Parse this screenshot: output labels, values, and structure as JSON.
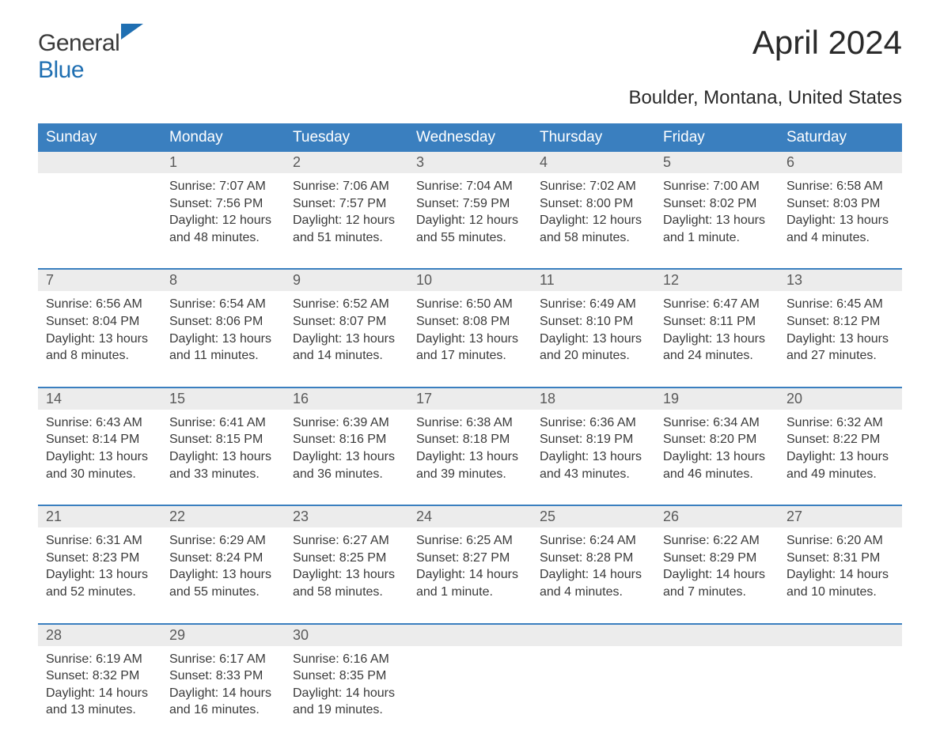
{
  "brand": {
    "part1": "General",
    "part2": "Blue"
  },
  "title": "April 2024",
  "subtitle": "Boulder, Montana, United States",
  "colors": {
    "header_bg": "#3a7fbf",
    "header_text": "#ffffff",
    "num_row_bg": "#ececec",
    "week_border": "#3a7fbf",
    "body_text": "#3a3a3a",
    "page_bg": "#ffffff",
    "logo_blue": "#1f6fb2"
  },
  "day_names": [
    "Sunday",
    "Monday",
    "Tuesday",
    "Wednesday",
    "Thursday",
    "Friday",
    "Saturday"
  ],
  "label": {
    "sunrise": "Sunrise:",
    "sunset": "Sunset:",
    "daylight": "Daylight:"
  },
  "weeks": [
    [
      null,
      {
        "n": "1",
        "sunrise": "7:07 AM",
        "sunset": "7:56 PM",
        "daylight": "12 hours and 48 minutes."
      },
      {
        "n": "2",
        "sunrise": "7:06 AM",
        "sunset": "7:57 PM",
        "daylight": "12 hours and 51 minutes."
      },
      {
        "n": "3",
        "sunrise": "7:04 AM",
        "sunset": "7:59 PM",
        "daylight": "12 hours and 55 minutes."
      },
      {
        "n": "4",
        "sunrise": "7:02 AM",
        "sunset": "8:00 PM",
        "daylight": "12 hours and 58 minutes."
      },
      {
        "n": "5",
        "sunrise": "7:00 AM",
        "sunset": "8:02 PM",
        "daylight": "13 hours and 1 minute."
      },
      {
        "n": "6",
        "sunrise": "6:58 AM",
        "sunset": "8:03 PM",
        "daylight": "13 hours and 4 minutes."
      }
    ],
    [
      {
        "n": "7",
        "sunrise": "6:56 AM",
        "sunset": "8:04 PM",
        "daylight": "13 hours and 8 minutes."
      },
      {
        "n": "8",
        "sunrise": "6:54 AM",
        "sunset": "8:06 PM",
        "daylight": "13 hours and 11 minutes."
      },
      {
        "n": "9",
        "sunrise": "6:52 AM",
        "sunset": "8:07 PM",
        "daylight": "13 hours and 14 minutes."
      },
      {
        "n": "10",
        "sunrise": "6:50 AM",
        "sunset": "8:08 PM",
        "daylight": "13 hours and 17 minutes."
      },
      {
        "n": "11",
        "sunrise": "6:49 AM",
        "sunset": "8:10 PM",
        "daylight": "13 hours and 20 minutes."
      },
      {
        "n": "12",
        "sunrise": "6:47 AM",
        "sunset": "8:11 PM",
        "daylight": "13 hours and 24 minutes."
      },
      {
        "n": "13",
        "sunrise": "6:45 AM",
        "sunset": "8:12 PM",
        "daylight": "13 hours and 27 minutes."
      }
    ],
    [
      {
        "n": "14",
        "sunrise": "6:43 AM",
        "sunset": "8:14 PM",
        "daylight": "13 hours and 30 minutes."
      },
      {
        "n": "15",
        "sunrise": "6:41 AM",
        "sunset": "8:15 PM",
        "daylight": "13 hours and 33 minutes."
      },
      {
        "n": "16",
        "sunrise": "6:39 AM",
        "sunset": "8:16 PM",
        "daylight": "13 hours and 36 minutes."
      },
      {
        "n": "17",
        "sunrise": "6:38 AM",
        "sunset": "8:18 PM",
        "daylight": "13 hours and 39 minutes."
      },
      {
        "n": "18",
        "sunrise": "6:36 AM",
        "sunset": "8:19 PM",
        "daylight": "13 hours and 43 minutes."
      },
      {
        "n": "19",
        "sunrise": "6:34 AM",
        "sunset": "8:20 PM",
        "daylight": "13 hours and 46 minutes."
      },
      {
        "n": "20",
        "sunrise": "6:32 AM",
        "sunset": "8:22 PM",
        "daylight": "13 hours and 49 minutes."
      }
    ],
    [
      {
        "n": "21",
        "sunrise": "6:31 AM",
        "sunset": "8:23 PM",
        "daylight": "13 hours and 52 minutes."
      },
      {
        "n": "22",
        "sunrise": "6:29 AM",
        "sunset": "8:24 PM",
        "daylight": "13 hours and 55 minutes."
      },
      {
        "n": "23",
        "sunrise": "6:27 AM",
        "sunset": "8:25 PM",
        "daylight": "13 hours and 58 minutes."
      },
      {
        "n": "24",
        "sunrise": "6:25 AM",
        "sunset": "8:27 PM",
        "daylight": "14 hours and 1 minute."
      },
      {
        "n": "25",
        "sunrise": "6:24 AM",
        "sunset": "8:28 PM",
        "daylight": "14 hours and 4 minutes."
      },
      {
        "n": "26",
        "sunrise": "6:22 AM",
        "sunset": "8:29 PM",
        "daylight": "14 hours and 7 minutes."
      },
      {
        "n": "27",
        "sunrise": "6:20 AM",
        "sunset": "8:31 PM",
        "daylight": "14 hours and 10 minutes."
      }
    ],
    [
      {
        "n": "28",
        "sunrise": "6:19 AM",
        "sunset": "8:32 PM",
        "daylight": "14 hours and 13 minutes."
      },
      {
        "n": "29",
        "sunrise": "6:17 AM",
        "sunset": "8:33 PM",
        "daylight": "14 hours and 16 minutes."
      },
      {
        "n": "30",
        "sunrise": "6:16 AM",
        "sunset": "8:35 PM",
        "daylight": "14 hours and 19 minutes."
      },
      null,
      null,
      null,
      null
    ]
  ]
}
